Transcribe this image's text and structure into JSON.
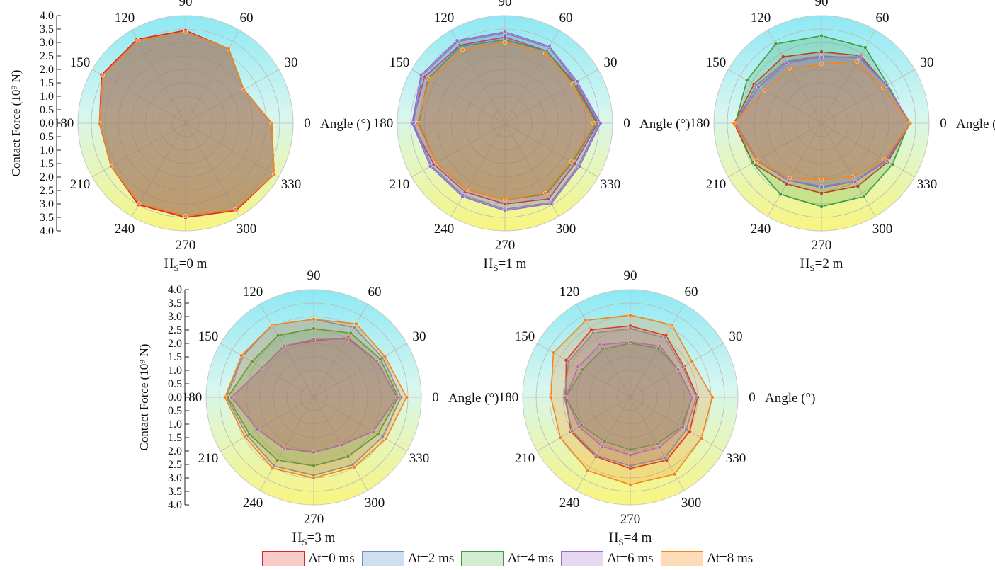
{
  "legend_items": [
    {
      "label": "Δt=0 ms",
      "color": "#d62728",
      "fill": "#f8c9c9"
    },
    {
      "label": "Δt=2 ms",
      "color": "#6f90b8",
      "fill": "#cfdfee"
    },
    {
      "label": "Δt=4 ms",
      "color": "#3e9e3e",
      "fill": "#d3ecd3"
    },
    {
      "label": "Δt=6 ms",
      "color": "#9a6cc8",
      "fill": "#e5d8f1"
    },
    {
      "label": "Δt=8 ms",
      "color": "#f58518",
      "fill": "#fcdcb8"
    }
  ],
  "chart_data": [
    {
      "type": "radar",
      "subtitle_main": "H",
      "subtitle_sub": "S",
      "subtitle_rest": "=0 m",
      "angle_title": "Angle (°)",
      "ylabel": "Contact Force (10⁹ N)",
      "ylim": [
        0,
        4
      ],
      "yticks": [
        "4.0",
        "3.5",
        "3.0",
        "2.5",
        "2.0",
        "1.5",
        "1.0",
        "0.5",
        "0.0"
      ],
      "angles": [
        0,
        30,
        60,
        90,
        120,
        150,
        180,
        210,
        240,
        270,
        300,
        330
      ],
      "angle_labels": [
        "0",
        "30",
        "60",
        "90",
        "120",
        "150",
        "180",
        "210",
        "240",
        "270",
        "300",
        "330"
      ],
      "series": [
        {
          "name": "Δt=0 ms",
          "values": [
            3.2,
            2.5,
            3.2,
            3.45,
            3.6,
            3.6,
            3.2,
            3.2,
            3.5,
            3.5,
            3.75,
            3.8
          ]
        },
        {
          "name": "Δt=2 ms",
          "values": [
            3.2,
            2.5,
            3.2,
            3.4,
            3.55,
            3.55,
            3.2,
            3.2,
            3.45,
            3.45,
            3.7,
            3.8
          ]
        },
        {
          "name": "Δt=4 ms",
          "values": [
            3.2,
            2.5,
            3.2,
            3.4,
            3.55,
            3.55,
            3.2,
            3.2,
            3.45,
            3.45,
            3.7,
            3.8
          ]
        },
        {
          "name": "Δt=6 ms",
          "values": [
            3.2,
            2.5,
            3.2,
            3.4,
            3.55,
            3.55,
            3.2,
            3.2,
            3.45,
            3.45,
            3.7,
            3.8
          ]
        },
        {
          "name": "Δt=8 ms",
          "values": [
            3.2,
            2.5,
            3.2,
            3.4,
            3.55,
            3.55,
            3.2,
            3.2,
            3.45,
            3.45,
            3.7,
            3.8
          ]
        }
      ]
    },
    {
      "type": "radar",
      "subtitle_main": "H",
      "subtitle_sub": "S",
      "subtitle_rest": "=1 m",
      "angle_title": "Angle (°)",
      "ylim": [
        0,
        4
      ],
      "angles": [
        0,
        30,
        60,
        90,
        120,
        150,
        180,
        210,
        240,
        270,
        300,
        330
      ],
      "angle_labels": [
        "0",
        "30",
        "60",
        "90",
        "120",
        "150",
        "180",
        "210",
        "240",
        "270",
        "300",
        "330"
      ],
      "series": [
        {
          "name": "Δt=0 ms",
          "values": [
            3.45,
            3.0,
            3.1,
            3.2,
            3.35,
            3.45,
            3.45,
            3.05,
            2.95,
            3.0,
            3.25,
            3.0
          ]
        },
        {
          "name": "Δt=2 ms",
          "values": [
            3.5,
            3.05,
            3.25,
            3.35,
            3.5,
            3.55,
            3.4,
            3.15,
            3.1,
            3.2,
            3.4,
            3.15
          ]
        },
        {
          "name": "Δt=4 ms",
          "values": [
            3.4,
            2.95,
            3.1,
            3.1,
            3.3,
            3.3,
            3.2,
            2.95,
            2.85,
            2.85,
            3.05,
            2.9
          ]
        },
        {
          "name": "Δt=6 ms",
          "values": [
            3.55,
            3.1,
            3.3,
            3.4,
            3.55,
            3.6,
            3.45,
            3.2,
            3.15,
            3.25,
            3.45,
            3.2
          ]
        },
        {
          "name": "Δt=8 ms",
          "values": [
            3.3,
            2.9,
            3.0,
            3.0,
            3.15,
            3.25,
            3.25,
            2.95,
            2.85,
            2.85,
            3.0,
            2.85
          ]
        }
      ]
    },
    {
      "type": "radar",
      "subtitle_main": "H",
      "subtitle_sub": "S",
      "subtitle_rest": "=2 m",
      "angle_title": "Angle (°)",
      "ylim": [
        0,
        4
      ],
      "angles": [
        0,
        30,
        60,
        90,
        120,
        150,
        180,
        210,
        240,
        270,
        300,
        330
      ],
      "angle_labels": [
        "0",
        "30",
        "60",
        "90",
        "120",
        "150",
        "180",
        "210",
        "240",
        "270",
        "300",
        "330"
      ],
      "series": [
        {
          "name": "Δt=0 ms",
          "values": [
            3.3,
            2.8,
            2.9,
            2.65,
            2.85,
            2.9,
            3.25,
            2.95,
            2.6,
            2.6,
            2.7,
            2.85
          ]
        },
        {
          "name": "Δt=2 ms",
          "values": [
            3.3,
            2.8,
            2.8,
            2.5,
            2.65,
            2.8,
            3.2,
            2.8,
            2.45,
            2.4,
            2.5,
            2.75
          ]
        },
        {
          "name": "Δt=4 ms",
          "values": [
            3.25,
            2.85,
            3.25,
            3.25,
            3.4,
            3.2,
            3.2,
            2.95,
            3.05,
            3.1,
            3.15,
            3.05
          ]
        },
        {
          "name": "Δt=6 ms",
          "values": [
            3.3,
            2.8,
            2.85,
            2.45,
            2.6,
            2.7,
            3.2,
            2.75,
            2.45,
            2.35,
            2.5,
            2.8
          ]
        },
        {
          "name": "Δt=8 ms",
          "values": [
            3.3,
            2.65,
            2.65,
            2.2,
            2.35,
            2.45,
            3.25,
            2.8,
            2.35,
            2.1,
            2.3,
            2.7
          ]
        }
      ]
    },
    {
      "type": "radar",
      "subtitle_main": "H",
      "subtitle_sub": "S",
      "subtitle_rest": "=3 m",
      "angle_title": "Angle (°)",
      "ylabel": "Contact Force (10⁹ N)",
      "ylim": [
        0,
        4
      ],
      "yticks": [
        "4.0",
        "3.5",
        "3.0",
        "2.5",
        "2.0",
        "1.5",
        "1.0",
        "0.5",
        "0.0"
      ],
      "angles": [
        0,
        30,
        60,
        90,
        120,
        150,
        180,
        210,
        240,
        270,
        300,
        330
      ],
      "angle_labels": [
        "0",
        "30",
        "60",
        "90",
        "120",
        "150",
        "180",
        "210",
        "240",
        "270",
        "300",
        "330"
      ],
      "series": [
        {
          "name": "Δt=0 ms",
          "values": [
            3.1,
            2.7,
            2.55,
            2.1,
            2.2,
            2.2,
            3.05,
            2.4,
            2.2,
            2.05,
            2.05,
            2.55
          ]
        },
        {
          "name": "Δt=2 ms",
          "values": [
            3.25,
            2.95,
            3.0,
            2.9,
            3.1,
            3.05,
            3.25,
            2.85,
            2.95,
            2.9,
            2.9,
            2.95
          ]
        },
        {
          "name": "Δt=4 ms",
          "values": [
            3.15,
            2.85,
            2.75,
            2.55,
            2.65,
            2.65,
            3.2,
            2.75,
            2.7,
            2.55,
            2.55,
            2.75
          ]
        },
        {
          "name": "Δt=6 ms",
          "values": [
            3.1,
            2.7,
            2.5,
            2.15,
            2.2,
            2.2,
            3.05,
            2.4,
            2.2,
            2.05,
            2.05,
            2.55
          ]
        },
        {
          "name": "Δt=8 ms",
          "values": [
            3.45,
            3.05,
            3.15,
            2.9,
            3.1,
            3.1,
            3.3,
            2.95,
            3.05,
            3.0,
            3.0,
            3.1
          ]
        }
      ]
    },
    {
      "type": "radar",
      "subtitle_main": "H",
      "subtitle_sub": "S",
      "subtitle_rest": "=4 m",
      "angle_title": "Angle (°)",
      "ylim": [
        0,
        4
      ],
      "angles": [
        0,
        30,
        60,
        90,
        120,
        150,
        180,
        210,
        240,
        270,
        300,
        330
      ],
      "angle_labels": [
        "0",
        "30",
        "60",
        "90",
        "120",
        "150",
        "180",
        "210",
        "240",
        "270",
        "300",
        "330"
      ],
      "series": [
        {
          "name": "Δt=0 ms",
          "values": [
            2.5,
            2.3,
            2.65,
            2.65,
            2.9,
            2.75,
            2.4,
            2.55,
            2.55,
            2.65,
            2.7,
            2.55
          ]
        },
        {
          "name": "Δt=2 ms",
          "values": [
            2.45,
            2.25,
            2.55,
            2.55,
            2.75,
            2.65,
            2.45,
            2.5,
            2.5,
            2.55,
            2.6,
            2.4
          ]
        },
        {
          "name": "Δt=4 ms",
          "values": [
            2.3,
            2.05,
            2.1,
            2.0,
            2.05,
            2.05,
            2.4,
            2.1,
            1.9,
            1.95,
            2.0,
            2.2
          ]
        },
        {
          "name": "Δt=6 ms",
          "values": [
            2.3,
            2.05,
            2.2,
            2.05,
            2.25,
            2.25,
            2.4,
            2.2,
            2.1,
            2.15,
            2.15,
            2.25
          ]
        },
        {
          "name": "Δt=8 ms",
          "values": [
            3.05,
            2.65,
            3.1,
            3.05,
            3.3,
            3.3,
            2.95,
            3.0,
            3.15,
            3.25,
            3.3,
            3.05
          ]
        }
      ]
    }
  ]
}
